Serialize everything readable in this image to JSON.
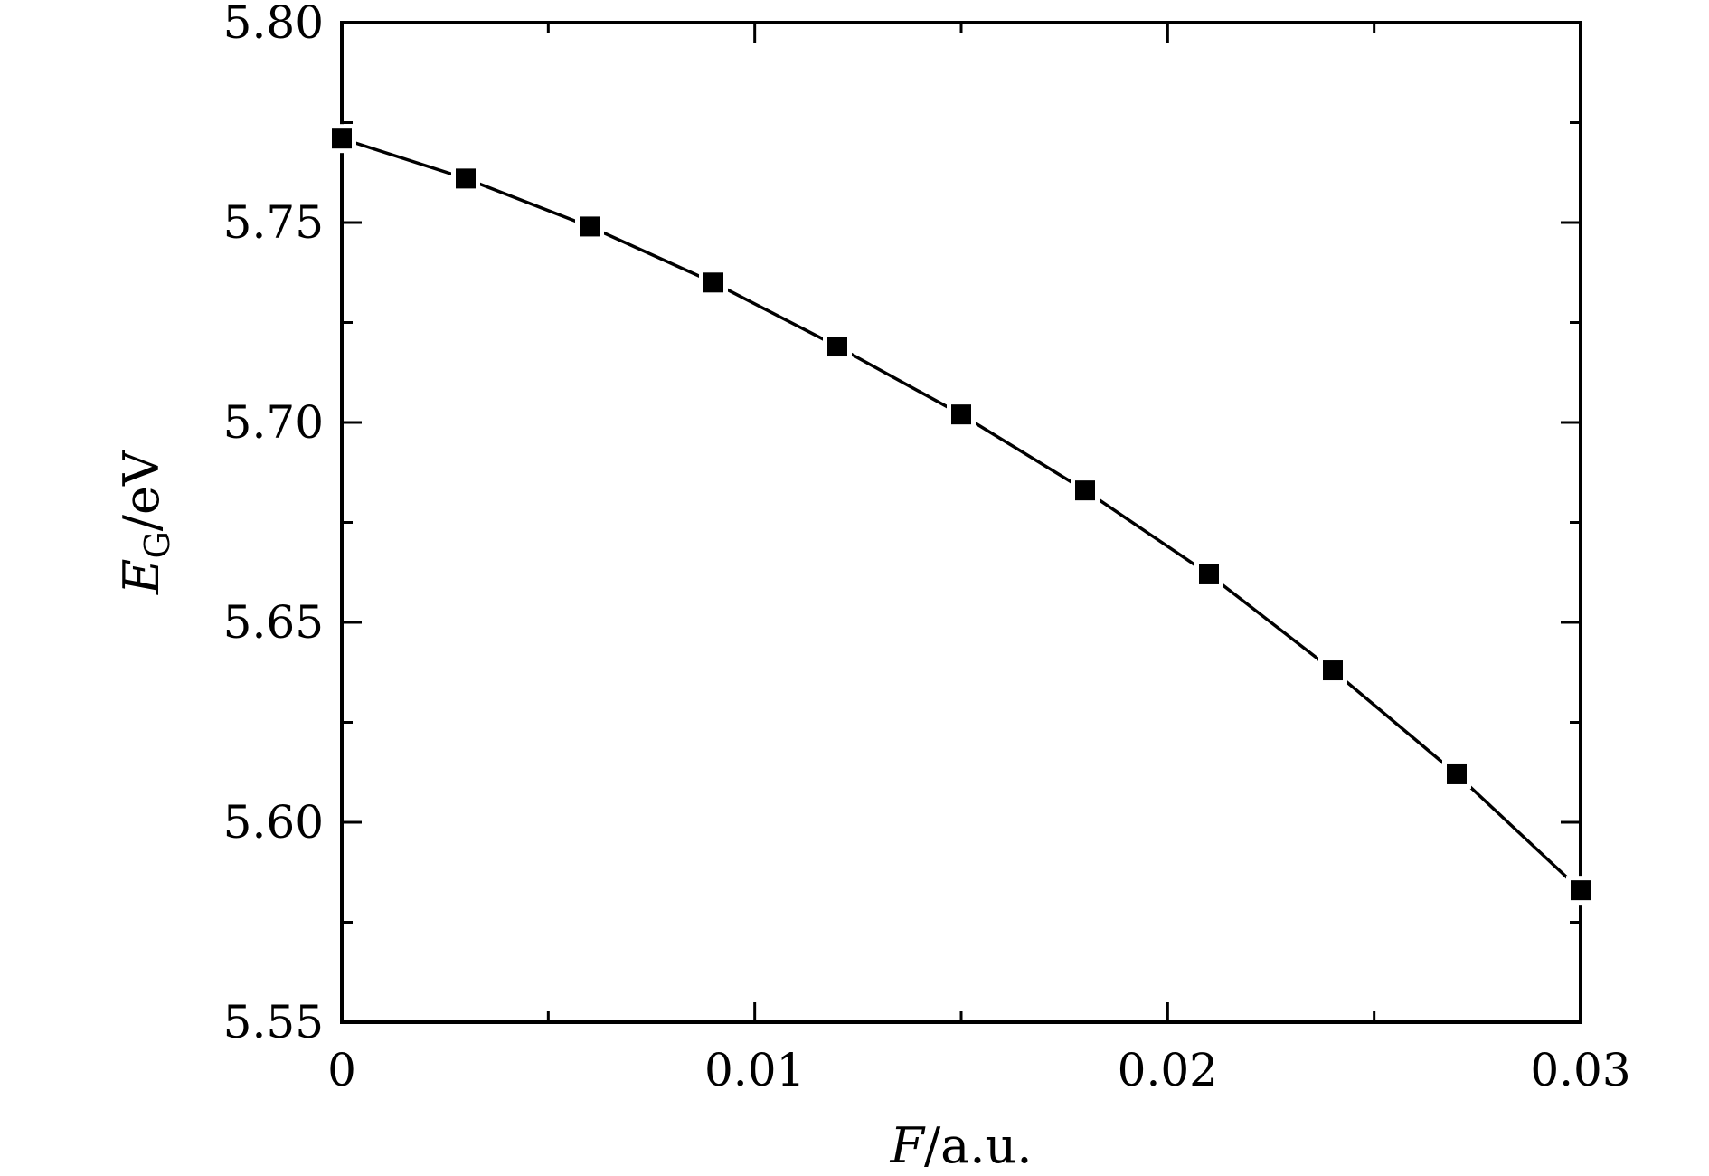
{
  "chart_data": {
    "type": "line",
    "xlabel_italic": "F",
    "xlabel_rest": "/a.u.",
    "ylabel_italic": "E",
    "ylabel_sub": "G",
    "ylabel_rest": "/eV",
    "xlim": [
      0,
      0.03
    ],
    "ylim": [
      5.55,
      5.8
    ],
    "x_ticks": [
      0,
      0.01,
      0.02,
      0.03
    ],
    "x_tick_labels": [
      "0",
      "0.01",
      "0.02",
      "0.03"
    ],
    "x_minor_ticks": [
      0.005,
      0.015,
      0.025
    ],
    "y_ticks": [
      5.55,
      5.6,
      5.65,
      5.7,
      5.75,
      5.8
    ],
    "y_tick_labels": [
      "5.55",
      "5.60",
      "5.65",
      "5.70",
      "5.75",
      "5.80"
    ],
    "y_minor_ticks": [
      5.575,
      5.625,
      5.675,
      5.725,
      5.775
    ],
    "grid": false,
    "marker": "square",
    "line_color": "#000000",
    "series": [
      {
        "x": [
          0,
          0.003,
          0.006,
          0.009,
          0.012,
          0.015,
          0.018,
          0.021,
          0.024,
          0.027,
          0.03
        ],
        "y": [
          5.771,
          5.761,
          5.749,
          5.735,
          5.719,
          5.702,
          5.683,
          5.662,
          5.638,
          5.612,
          5.583
        ]
      }
    ]
  }
}
